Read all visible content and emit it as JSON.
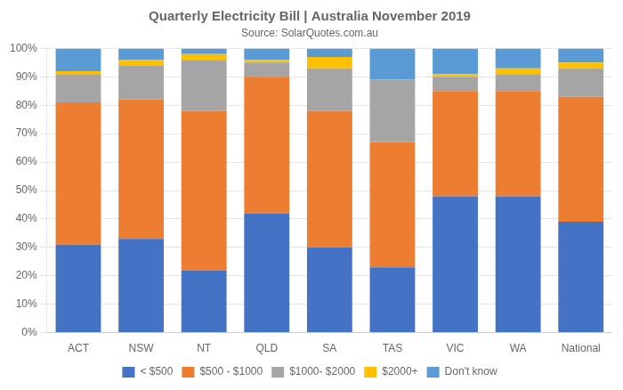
{
  "chart_data": {
    "type": "bar",
    "stacked": true,
    "title": "Quarterly Electricity Bill | Australia November 2019",
    "subtitle": "Source: SolarQuotes.com.au",
    "categories": [
      "ACT",
      "NSW",
      "NT",
      "QLD",
      "SA",
      "TAS",
      "VIC",
      "WA",
      "National"
    ],
    "series": [
      {
        "name": "< $500",
        "color": "#4472C4",
        "values": [
          31,
          33,
          22,
          42,
          30,
          23,
          48,
          48,
          39
        ]
      },
      {
        "name": "$500 - $1000",
        "color": "#ED7D31",
        "values": [
          50,
          49,
          56,
          48,
          48,
          44,
          37,
          37,
          44
        ]
      },
      {
        "name": "$1000- $2000",
        "color": "#A5A5A5",
        "values": [
          10,
          12,
          18,
          5,
          15,
          22,
          5,
          6,
          10
        ]
      },
      {
        "name": "$2000+",
        "color": "#FFC000",
        "values": [
          1,
          2,
          2,
          1,
          4,
          0,
          1,
          2,
          2
        ]
      },
      {
        "name": "Don't know",
        "color": "#5B9BD5",
        "values": [
          8,
          4,
          2,
          4,
          3,
          11,
          9,
          7,
          5
        ]
      }
    ],
    "ylim": [
      0,
      100
    ],
    "yticks": [
      {
        "value": 0,
        "label": "0%"
      },
      {
        "value": 10,
        "label": "10%"
      },
      {
        "value": 20,
        "label": "20%"
      },
      {
        "value": 30,
        "label": "30%"
      },
      {
        "value": 40,
        "label": "40%"
      },
      {
        "value": 50,
        "label": "50%"
      },
      {
        "value": 60,
        "label": "60%"
      },
      {
        "value": 70,
        "label": "70%"
      },
      {
        "value": 80,
        "label": "80%"
      },
      {
        "value": 90,
        "label": "90%"
      },
      {
        "value": 100,
        "label": "100%"
      }
    ],
    "grid": true,
    "legend": "bottom"
  }
}
